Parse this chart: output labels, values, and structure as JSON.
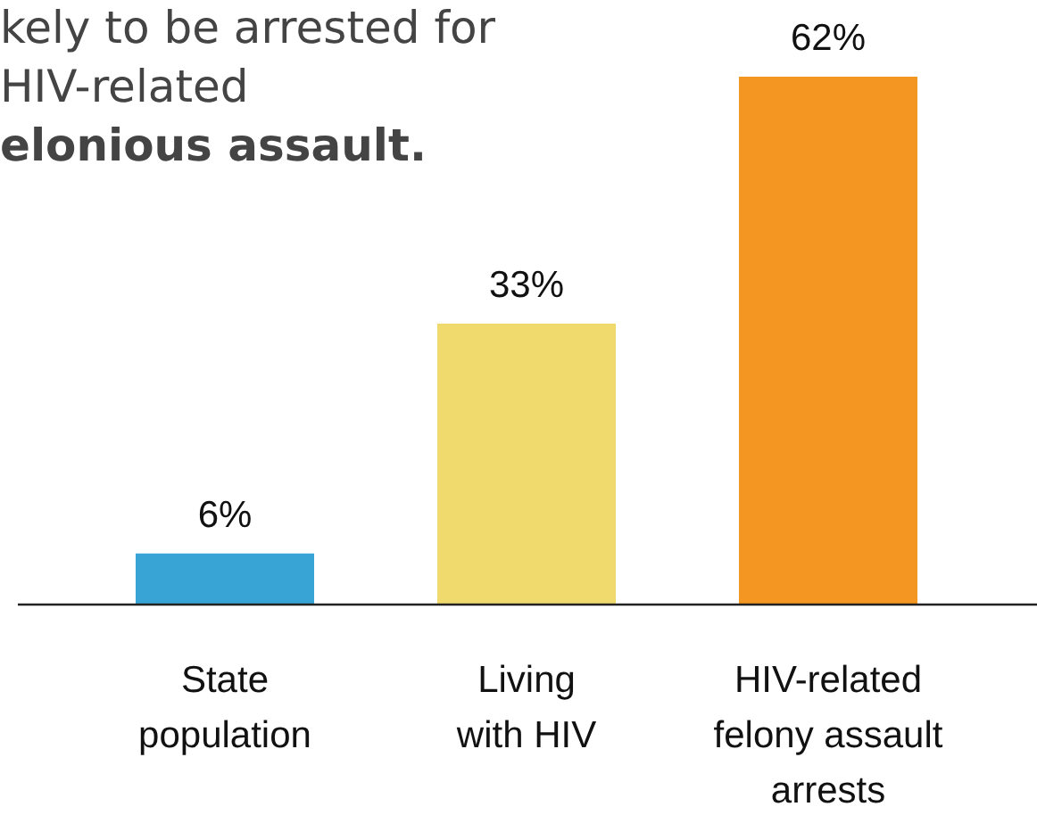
{
  "chart_data": {
    "type": "bar",
    "annotations": [
      "kely to be arrested for",
      "HIV-related",
      "elonious assault."
    ],
    "categories": [
      "State\npopulation",
      "Living\nwith HIV",
      "HIV-related\nfelony assault\narrests"
    ],
    "values": [
      6,
      33,
      62
    ],
    "colors": [
      "#38a3d5",
      "#f1da6d",
      "#f49722"
    ],
    "value_labels": [
      "6%",
      "33%",
      "62%"
    ]
  }
}
